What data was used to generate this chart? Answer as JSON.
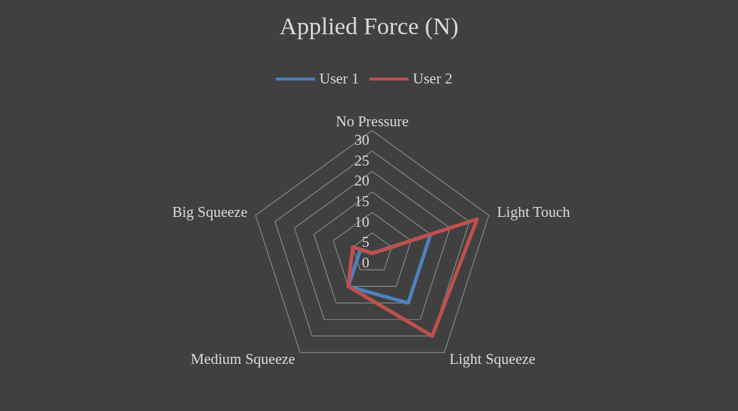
{
  "chart_data": {
    "type": "radar",
    "title": "Applied Force (N)",
    "categories": [
      "No Pressure",
      "Light Touch",
      "Light Squeeze",
      "Medium Squeeze",
      "Big Squeeze"
    ],
    "series": [
      {
        "name": "User 1",
        "color": "#4f81bd",
        "values": [
          0,
          15,
          15,
          10,
          3
        ]
      },
      {
        "name": "User 2",
        "color": "#c0504d",
        "values": [
          0,
          27,
          25,
          10,
          5
        ]
      }
    ],
    "ylim": [
      0,
      30
    ],
    "yticks": [
      0,
      5,
      10,
      15,
      20,
      25,
      30
    ],
    "grid": true,
    "legend": "top"
  }
}
